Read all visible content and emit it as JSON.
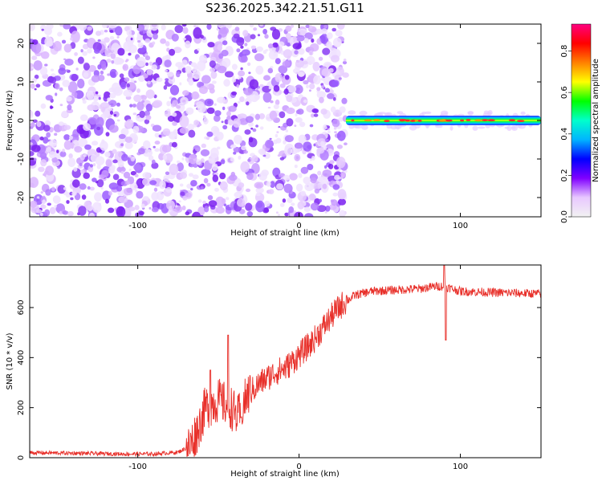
{
  "title": "S236.2025.342.21.51.G11",
  "chart_data": [
    {
      "type": "heatmap",
      "xlabel": "Height of straight line (km)",
      "ylabel": "Frequency (Hz)",
      "xlim": [
        -167,
        150
      ],
      "ylim": [
        -25,
        25
      ],
      "xticks": [
        -100,
        0,
        100
      ],
      "yticks": [
        -20,
        -10,
        0,
        10,
        20
      ],
      "noise_region_x": [
        -167,
        29
      ],
      "signal_band": {
        "x": [
          29,
          150
        ],
        "freq_center": 0,
        "freq_halfwidth": 1.2
      },
      "colorbar": {
        "label": "Normalized spectral amplitude",
        "range": [
          0,
          0.93
        ],
        "ticks": [
          0.0,
          0.2,
          0.4,
          0.6,
          0.8
        ],
        "colormap": [
          "#f2f2f2",
          "#e8c8ff",
          "#8000ff",
          "#0000ff",
          "#00b4ff",
          "#00ffcc",
          "#00ff00",
          "#ffff00",
          "#ff8000",
          "#ff0000",
          "#ff0080"
        ]
      }
    },
    {
      "type": "line",
      "xlabel": "Height of straight line (km)",
      "ylabel": "SNR (10 * v/v)",
      "xlim": [
        -167,
        150
      ],
      "ylim": [
        0,
        770
      ],
      "xticks": [
        -100,
        0,
        100
      ],
      "yticks": [
        0,
        200,
        400,
        600
      ],
      "series_color": "#e8302a",
      "series_points": [
        [
          -167,
          20
        ],
        [
          -140,
          18
        ],
        [
          -110,
          15
        ],
        [
          -90,
          15
        ],
        [
          -75,
          22
        ],
        [
          -68,
          45
        ],
        [
          -63,
          110
        ],
        [
          -58,
          200
        ],
        [
          -50,
          230
        ],
        [
          -42,
          200
        ],
        [
          -38,
          160
        ],
        [
          -32,
          250
        ],
        [
          -24,
          300
        ],
        [
          -15,
          340
        ],
        [
          -8,
          360
        ],
        [
          0,
          410
        ],
        [
          8,
          460
        ],
        [
          15,
          520
        ],
        [
          22,
          580
        ],
        [
          28,
          620
        ],
        [
          35,
          650
        ],
        [
          45,
          665
        ],
        [
          60,
          670
        ],
        [
          75,
          675
        ],
        [
          85,
          685
        ],
        [
          90,
          685
        ],
        [
          100,
          665
        ],
        [
          120,
          660
        ],
        [
          150,
          655
        ]
      ],
      "spikes": [
        [
          -55,
          350
        ],
        [
          -44,
          490
        ],
        [
          -36,
          160
        ],
        [
          90,
          770
        ],
        [
          91,
          470
        ]
      ]
    }
  ]
}
